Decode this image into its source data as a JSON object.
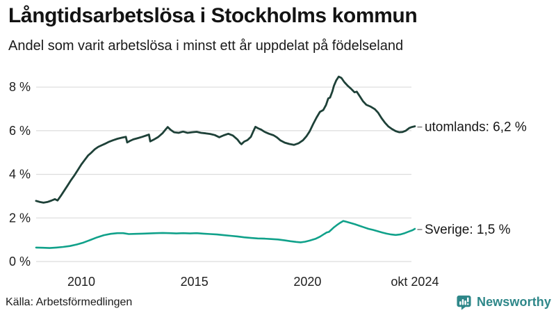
{
  "header": {
    "title_note": "bound from chart_data"
  },
  "footer": {
    "source": "Källa: Arbetsförmedlingen",
    "brand": "Newsworthy"
  },
  "colors": {
    "utomlands_line": "#1e4138",
    "sverige_line": "#10a18a",
    "grid": "#dcdcdc",
    "connector": "#8a8a8a",
    "brand_teal": "#2e8789",
    "text": "#161616"
  },
  "chart_data": {
    "type": "line",
    "title": "Långtidsarbetslösa i Stockholms kommun",
    "subtitle": "Andel som varit arbetslösa i minst ett år uppdelat på födelseland",
    "xlabel": "",
    "ylabel": "",
    "x_unit": "decimal_year",
    "xlim": [
      2008,
      2024.83
    ],
    "ylim": [
      0,
      8.6
    ],
    "grid": "horizontal",
    "legend_position": "end-of-line",
    "yticks": [
      {
        "value": 0,
        "label": "0 %"
      },
      {
        "value": 2,
        "label": "2 %"
      },
      {
        "value": 4,
        "label": "4 %"
      },
      {
        "value": 6,
        "label": "6 %"
      },
      {
        "value": 8,
        "label": "8 %"
      }
    ],
    "xticks": [
      {
        "value": 2010,
        "label": "2010"
      },
      {
        "value": 2015,
        "label": "2015"
      },
      {
        "value": 2020,
        "label": "2020"
      },
      {
        "value": 2024.75,
        "label": "okt 2024"
      }
    ],
    "series": [
      {
        "id": "utomlands",
        "name": "utomlands",
        "label": "utomlands: 6,2 %",
        "end_value": "6,2 %",
        "color": "#1e4138",
        "width": 2.8,
        "points": [
          [
            2008.0,
            2.78
          ],
          [
            2008.17,
            2.73
          ],
          [
            2008.33,
            2.7
          ],
          [
            2008.5,
            2.73
          ],
          [
            2008.67,
            2.79
          ],
          [
            2008.83,
            2.86
          ],
          [
            2008.95,
            2.8
          ],
          [
            2009.1,
            3.02
          ],
          [
            2009.25,
            3.26
          ],
          [
            2009.4,
            3.5
          ],
          [
            2009.55,
            3.74
          ],
          [
            2009.7,
            3.96
          ],
          [
            2009.85,
            4.2
          ],
          [
            2010.0,
            4.45
          ],
          [
            2010.15,
            4.66
          ],
          [
            2010.3,
            4.86
          ],
          [
            2010.45,
            5.0
          ],
          [
            2010.6,
            5.15
          ],
          [
            2010.75,
            5.26
          ],
          [
            2010.9,
            5.33
          ],
          [
            2011.05,
            5.4
          ],
          [
            2011.2,
            5.48
          ],
          [
            2011.4,
            5.56
          ],
          [
            2011.6,
            5.63
          ],
          [
            2011.8,
            5.68
          ],
          [
            2011.97,
            5.72
          ],
          [
            2012.03,
            5.46
          ],
          [
            2012.15,
            5.53
          ],
          [
            2012.3,
            5.6
          ],
          [
            2012.5,
            5.66
          ],
          [
            2012.7,
            5.72
          ],
          [
            2012.9,
            5.79
          ],
          [
            2012.99,
            5.82
          ],
          [
            2013.05,
            5.51
          ],
          [
            2013.2,
            5.59
          ],
          [
            2013.4,
            5.71
          ],
          [
            2013.6,
            5.89
          ],
          [
            2013.73,
            6.06
          ],
          [
            2013.82,
            6.17
          ],
          [
            2013.95,
            6.04
          ],
          [
            2014.1,
            5.93
          ],
          [
            2014.3,
            5.9
          ],
          [
            2014.5,
            5.96
          ],
          [
            2014.7,
            5.9
          ],
          [
            2014.9,
            5.93
          ],
          [
            2015.1,
            5.95
          ],
          [
            2015.3,
            5.9
          ],
          [
            2015.5,
            5.88
          ],
          [
            2015.7,
            5.85
          ],
          [
            2015.9,
            5.8
          ],
          [
            2016.1,
            5.7
          ],
          [
            2016.3,
            5.79
          ],
          [
            2016.5,
            5.86
          ],
          [
            2016.7,
            5.78
          ],
          [
            2016.9,
            5.6
          ],
          [
            2017.02,
            5.44
          ],
          [
            2017.08,
            5.38
          ],
          [
            2017.2,
            5.5
          ],
          [
            2017.35,
            5.57
          ],
          [
            2017.5,
            5.72
          ],
          [
            2017.6,
            5.96
          ],
          [
            2017.7,
            6.18
          ],
          [
            2017.82,
            6.11
          ],
          [
            2017.95,
            6.05
          ],
          [
            2018.1,
            5.95
          ],
          [
            2018.3,
            5.86
          ],
          [
            2018.5,
            5.79
          ],
          [
            2018.65,
            5.69
          ],
          [
            2018.8,
            5.56
          ],
          [
            2019.0,
            5.45
          ],
          [
            2019.2,
            5.39
          ],
          [
            2019.4,
            5.35
          ],
          [
            2019.6,
            5.42
          ],
          [
            2019.8,
            5.56
          ],
          [
            2019.95,
            5.74
          ],
          [
            2020.1,
            5.97
          ],
          [
            2020.25,
            6.3
          ],
          [
            2020.4,
            6.6
          ],
          [
            2020.55,
            6.86
          ],
          [
            2020.7,
            6.95
          ],
          [
            2020.82,
            7.18
          ],
          [
            2020.92,
            7.48
          ],
          [
            2021.0,
            7.52
          ],
          [
            2021.1,
            7.8
          ],
          [
            2021.17,
            8.06
          ],
          [
            2021.27,
            8.3
          ],
          [
            2021.38,
            8.48
          ],
          [
            2021.5,
            8.42
          ],
          [
            2021.63,
            8.23
          ],
          [
            2021.78,
            8.06
          ],
          [
            2021.93,
            7.92
          ],
          [
            2022.08,
            7.76
          ],
          [
            2022.18,
            7.79
          ],
          [
            2022.3,
            7.6
          ],
          [
            2022.45,
            7.36
          ],
          [
            2022.6,
            7.19
          ],
          [
            2022.8,
            7.1
          ],
          [
            2022.98,
            6.99
          ],
          [
            2023.13,
            6.82
          ],
          [
            2023.28,
            6.57
          ],
          [
            2023.43,
            6.36
          ],
          [
            2023.58,
            6.19
          ],
          [
            2023.73,
            6.08
          ],
          [
            2023.9,
            5.98
          ],
          [
            2024.05,
            5.93
          ],
          [
            2024.2,
            5.94
          ],
          [
            2024.35,
            6.0
          ],
          [
            2024.5,
            6.12
          ],
          [
            2024.62,
            6.17
          ],
          [
            2024.75,
            6.2
          ]
        ]
      },
      {
        "id": "sverige",
        "name": "Sverige",
        "label": "Sverige: 1,5 %",
        "end_value": "1,5 %",
        "color": "#10a18a",
        "width": 2.6,
        "points": [
          [
            2008.0,
            0.64
          ],
          [
            2008.3,
            0.63
          ],
          [
            2008.6,
            0.62
          ],
          [
            2008.9,
            0.64
          ],
          [
            2009.2,
            0.67
          ],
          [
            2009.5,
            0.71
          ],
          [
            2009.8,
            0.78
          ],
          [
            2010.1,
            0.87
          ],
          [
            2010.4,
            0.99
          ],
          [
            2010.7,
            1.11
          ],
          [
            2011.0,
            1.21
          ],
          [
            2011.3,
            1.27
          ],
          [
            2011.6,
            1.3
          ],
          [
            2011.85,
            1.3
          ],
          [
            2012.1,
            1.26
          ],
          [
            2012.4,
            1.27
          ],
          [
            2012.7,
            1.28
          ],
          [
            2013.0,
            1.29
          ],
          [
            2013.3,
            1.3
          ],
          [
            2013.6,
            1.31
          ],
          [
            2013.9,
            1.3
          ],
          [
            2014.2,
            1.29
          ],
          [
            2014.5,
            1.3
          ],
          [
            2014.8,
            1.29
          ],
          [
            2015.1,
            1.3
          ],
          [
            2015.4,
            1.28
          ],
          [
            2015.7,
            1.26
          ],
          [
            2016.0,
            1.24
          ],
          [
            2016.3,
            1.21
          ],
          [
            2016.6,
            1.18
          ],
          [
            2016.9,
            1.15
          ],
          [
            2017.2,
            1.11
          ],
          [
            2017.5,
            1.08
          ],
          [
            2017.8,
            1.06
          ],
          [
            2018.1,
            1.05
          ],
          [
            2018.4,
            1.03
          ],
          [
            2018.7,
            1.01
          ],
          [
            2019.0,
            0.97
          ],
          [
            2019.25,
            0.93
          ],
          [
            2019.5,
            0.9
          ],
          [
            2019.7,
            0.88
          ],
          [
            2019.9,
            0.91
          ],
          [
            2020.1,
            0.96
          ],
          [
            2020.35,
            1.04
          ],
          [
            2020.55,
            1.14
          ],
          [
            2020.75,
            1.27
          ],
          [
            2020.85,
            1.33
          ],
          [
            2020.95,
            1.36
          ],
          [
            2021.05,
            1.45
          ],
          [
            2021.15,
            1.55
          ],
          [
            2021.3,
            1.67
          ],
          [
            2021.45,
            1.78
          ],
          [
            2021.58,
            1.86
          ],
          [
            2021.7,
            1.83
          ],
          [
            2021.9,
            1.77
          ],
          [
            2022.1,
            1.71
          ],
          [
            2022.3,
            1.64
          ],
          [
            2022.5,
            1.57
          ],
          [
            2022.7,
            1.5
          ],
          [
            2022.9,
            1.45
          ],
          [
            2023.1,
            1.39
          ],
          [
            2023.3,
            1.33
          ],
          [
            2023.5,
            1.28
          ],
          [
            2023.7,
            1.24
          ],
          [
            2023.9,
            1.22
          ],
          [
            2024.1,
            1.24
          ],
          [
            2024.3,
            1.3
          ],
          [
            2024.5,
            1.38
          ],
          [
            2024.65,
            1.44
          ],
          [
            2024.75,
            1.5
          ]
        ]
      }
    ]
  }
}
